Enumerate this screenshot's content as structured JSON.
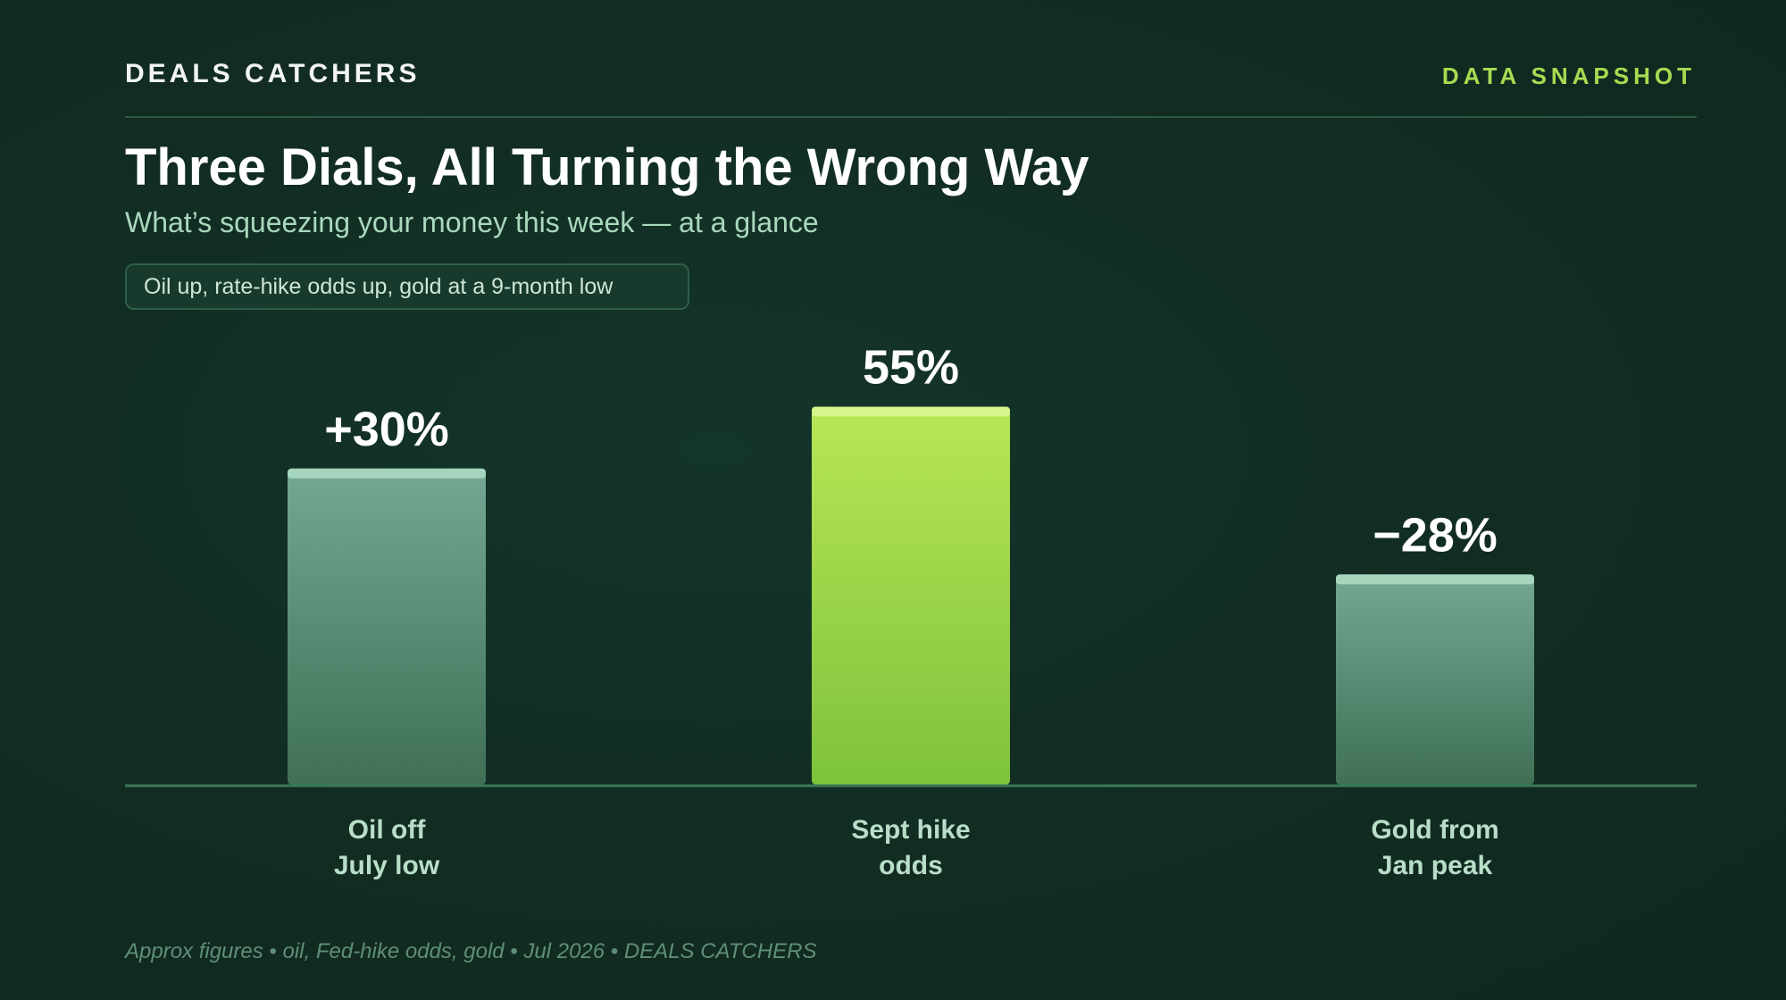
{
  "header": {
    "brand": "DEALS CATCHERS",
    "tag": "DATA SNAPSHOT",
    "title": "Three Dials, All Turning the Wrong Way",
    "subtitle": "What’s squeezing your money this week — at a glance",
    "pill": "Oil up, rate-hike odds up, gold at a 9-month low"
  },
  "footer": {
    "note": "Approx figures • oil, Fed-hike odds, gold • Jul 2026 • DEALS CATCHERS"
  },
  "colors": {
    "background": "#12301f",
    "accent": "#a7dc52",
    "bar_muted_top": "#74a894",
    "bar_muted_bottom": "#3f7056",
    "bar_highlight_top": "#b8e655",
    "bar_highlight_bottom": "#7ec23c",
    "baseline": "#3a7a56"
  },
  "chart_data": {
    "type": "bar",
    "categories": [
      [
        "Oil off",
        "July low"
      ],
      [
        "Sept hike",
        "odds"
      ],
      [
        "Gold from",
        "Jan peak"
      ]
    ],
    "values": [
      30,
      55,
      -28
    ],
    "value_labels": [
      "+30%",
      "55%",
      "−28%"
    ],
    "bar_heights_magnitude": [
      46,
      55,
      30.6
    ],
    "highlight_index": 1,
    "grid": false,
    "legend": "none"
  }
}
